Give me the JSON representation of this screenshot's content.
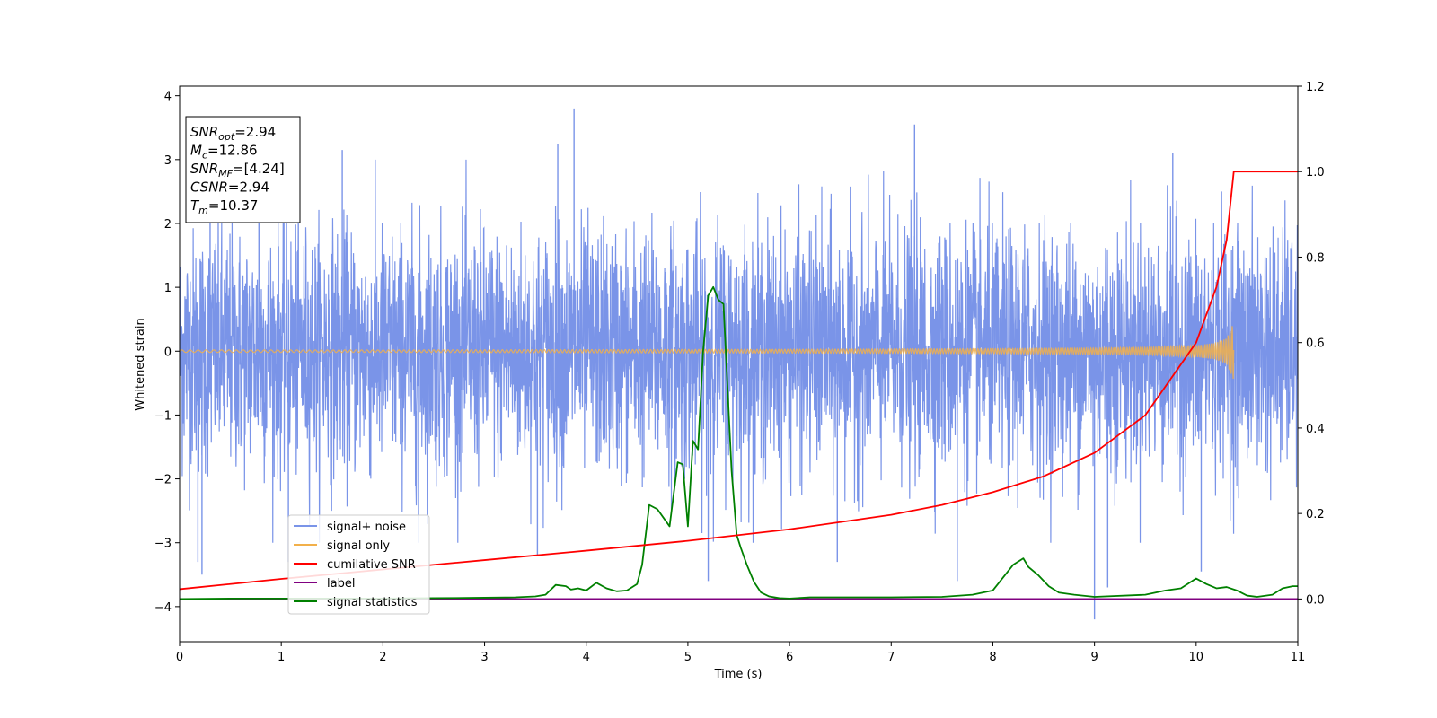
{
  "chart_data": {
    "type": "line",
    "title": "",
    "xlabel": "Time (s)",
    "ylabel": "Whitened strain",
    "y2label": "",
    "xlim": [
      0,
      11
    ],
    "ylim": [
      -4.55,
      4.15
    ],
    "y2lim": [
      -0.1,
      1.2
    ],
    "xticks": [
      "0",
      "1",
      "2",
      "3",
      "4",
      "5",
      "6",
      "7",
      "8",
      "9",
      "10",
      "11"
    ],
    "yticks": [
      "4",
      "3",
      "2",
      "1",
      "0",
      "−1",
      "−2",
      "−3",
      "−4"
    ],
    "y2ticks": [
      "1.2",
      "1.0",
      "0.8",
      "0.6",
      "0.4",
      "0.2",
      "0.0"
    ],
    "grid": false,
    "legend_position": "lower-left",
    "annotation": {
      "lines": [
        {
          "base": "SNR",
          "sub": "opt",
          "value": "=2.94"
        },
        {
          "base": "M",
          "sub": "c",
          "value": "=12.86"
        },
        {
          "base": "SNR",
          "sub": "MF",
          "value": "=[4.24]"
        },
        {
          "base": "CSNR",
          "sub": "",
          "value": "=2.94"
        },
        {
          "base": "T",
          "sub": "m",
          "value": "=10.37"
        }
      ]
    },
    "series": [
      {
        "name": "signal+ noise",
        "axis": "left",
        "color": "#7a94e8",
        "description_values": "dense whitened noise trace, approx. within [-4.2, 3.8]",
        "spikes": [
          {
            "x": 0.22,
            "y": -3.5
          },
          {
            "x": 0.3,
            "y": 2.9
          },
          {
            "x": 0.18,
            "y": -3.3
          },
          {
            "x": 0.78,
            "y": 2.85
          },
          {
            "x": 1.07,
            "y": -3.3
          },
          {
            "x": 1.6,
            "y": 3.15
          },
          {
            "x": 2.35,
            "y": -3.0
          },
          {
            "x": 3.72,
            "y": 3.25
          },
          {
            "x": 3.88,
            "y": 3.8
          },
          {
            "x": 3.52,
            "y": -3.2
          },
          {
            "x": 5.2,
            "y": -3.6
          },
          {
            "x": 6.47,
            "y": -3.3
          },
          {
            "x": 7.23,
            "y": 3.55
          },
          {
            "x": 7.65,
            "y": -3.6
          },
          {
            "x": 9.0,
            "y": -4.2
          },
          {
            "x": 9.13,
            "y": -3.7
          },
          {
            "x": 9.77,
            "y": 3.1
          },
          {
            "x": 10.05,
            "y": -3.45
          }
        ]
      },
      {
        "name": "signal only",
        "axis": "left",
        "color": "#f2b04a",
        "x": [
          0,
          2,
          4,
          6,
          7,
          8,
          9,
          9.5,
          10,
          10.2,
          10.3,
          10.37
        ],
        "amplitude": [
          0.02,
          0.02,
          0.025,
          0.03,
          0.035,
          0.04,
          0.05,
          0.06,
          0.09,
          0.13,
          0.2,
          0.45
        ]
      },
      {
        "name": "cumilative SNR",
        "axis": "right",
        "color": "#ff0000",
        "x": [
          0,
          1,
          2,
          3,
          4,
          5,
          6,
          7,
          7.5,
          8,
          8.5,
          9,
          9.5,
          10,
          10.2,
          10.3,
          10.37,
          10.38,
          11
        ],
        "values": [
          0.023,
          0.047,
          0.069,
          0.091,
          0.113,
          0.136,
          0.163,
          0.197,
          0.22,
          0.25,
          0.287,
          0.342,
          0.43,
          0.6,
          0.73,
          0.84,
          1.0,
          1.0,
          1.0
        ]
      },
      {
        "name": "label",
        "axis": "right",
        "color": "#800080",
        "x": [
          0,
          11
        ],
        "values": [
          0,
          0
        ]
      },
      {
        "name": "signal statistics",
        "axis": "right",
        "color": "#008000",
        "x": [
          0,
          0.5,
          1,
          1.5,
          2,
          2.5,
          3,
          3.3,
          3.5,
          3.6,
          3.7,
          3.8,
          3.85,
          3.92,
          4.0,
          4.1,
          4.2,
          4.3,
          4.4,
          4.5,
          4.55,
          4.62,
          4.7,
          4.82,
          4.9,
          4.95,
          5.0,
          5.05,
          5.1,
          5.15,
          5.2,
          5.25,
          5.3,
          5.35,
          5.43,
          5.48,
          5.52,
          5.58,
          5.65,
          5.72,
          5.8,
          5.9,
          6.0,
          6.2,
          6.5,
          7.0,
          7.5,
          7.8,
          8.0,
          8.1,
          8.2,
          8.3,
          8.35,
          8.45,
          8.55,
          8.65,
          8.8,
          9.0,
          9.5,
          9.7,
          9.85,
          10.0,
          10.1,
          10.2,
          10.3,
          10.4,
          10.5,
          10.6,
          10.75,
          10.85,
          10.95,
          11.0
        ],
        "values": [
          0.0,
          0.001,
          0.001,
          0.001,
          0.001,
          0.002,
          0.003,
          0.004,
          0.006,
          0.01,
          0.033,
          0.03,
          0.022,
          0.025,
          0.02,
          0.038,
          0.025,
          0.018,
          0.02,
          0.035,
          0.08,
          0.22,
          0.21,
          0.17,
          0.32,
          0.315,
          0.17,
          0.37,
          0.35,
          0.58,
          0.71,
          0.73,
          0.7,
          0.69,
          0.3,
          0.15,
          0.12,
          0.08,
          0.04,
          0.015,
          0.006,
          0.002,
          0.001,
          0.004,
          0.004,
          0.004,
          0.005,
          0.01,
          0.02,
          0.05,
          0.08,
          0.095,
          0.075,
          0.055,
          0.03,
          0.015,
          0.01,
          0.005,
          0.01,
          0.02,
          0.025,
          0.048,
          0.035,
          0.025,
          0.028,
          0.02,
          0.008,
          0.005,
          0.01,
          0.025,
          0.03,
          0.03
        ]
      }
    ]
  }
}
